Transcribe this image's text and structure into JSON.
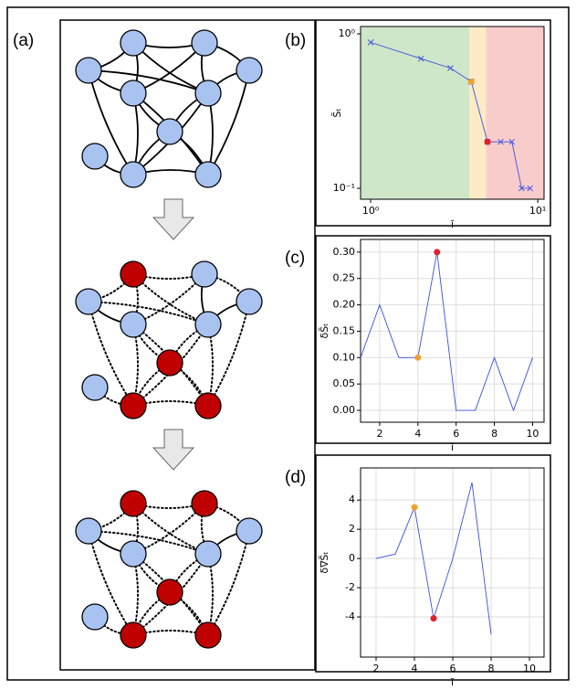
{
  "panel_labels": [
    "(a)",
    "(b)",
    "(c)",
    "(d)"
  ],
  "chart_data": [
    {
      "type": "line",
      "xlabel": "ĩ",
      "ylabel": "S̃ₜ",
      "xlog": true,
      "ylog": true,
      "grid": false,
      "color": "#3a50e0",
      "marker": "x",
      "x": [
        1,
        2,
        3,
        4,
        5,
        6,
        7,
        8,
        9
      ],
      "values": [
        0.88,
        0.69,
        0.6,
        0.49,
        0.2,
        0.2,
        0.2,
        0.1,
        0.1
      ],
      "xlim": [
        0.87,
        10.9
      ],
      "ylim": [
        0.085,
        1.115
      ],
      "xticks": [
        {
          "value": 1,
          "label": "10⁰"
        },
        {
          "value": 10,
          "label": "10¹"
        }
      ],
      "yticks": [
        {
          "value": 0.1,
          "label": "10⁻¹"
        },
        {
          "value": 1,
          "label": "10⁰"
        }
      ],
      "regions": [
        {
          "from": 0.87,
          "to": 3.9,
          "color": "#cfe6c8"
        },
        {
          "from": 3.9,
          "to": 4.9,
          "color": "#fcebc4"
        },
        {
          "from": 4.9,
          "to": 10.9,
          "color": "#f9cccc"
        }
      ],
      "highlights": [
        {
          "x": 4,
          "y": 0.49,
          "color": "#f0a030"
        },
        {
          "x": 5,
          "y": 0.2,
          "color": "#e0202a"
        }
      ]
    },
    {
      "type": "line",
      "xlabel": "ĩ",
      "ylabel": "δS̃ₜ",
      "grid": true,
      "color": "#3a50e0",
      "x": [
        1,
        2,
        3,
        4,
        5,
        6,
        7,
        8,
        9,
        10
      ],
      "values": [
        0.1,
        0.2,
        0.1,
        0.1,
        0.3,
        0,
        0,
        0.1,
        0,
        0.1
      ],
      "xlim": [
        1,
        10.6
      ],
      "ylim": [
        -0.0225,
        0.324
      ],
      "xticks": [
        2,
        4,
        6,
        8,
        10
      ],
      "yticks": [
        {
          "value": 0,
          "label": "0.00"
        },
        {
          "value": 0.05,
          "label": "0.05"
        },
        {
          "value": 0.1,
          "label": "0.10"
        },
        {
          "value": 0.15,
          "label": "0.15"
        },
        {
          "value": 0.2,
          "label": "0.20"
        },
        {
          "value": 0.25,
          "label": "0.25"
        },
        {
          "value": 0.3,
          "label": "0.30"
        }
      ],
      "highlights": [
        {
          "x": 4,
          "y": 0.1,
          "color": "#f0a030"
        },
        {
          "x": 5,
          "y": 0.3,
          "color": "#e0202a"
        }
      ]
    },
    {
      "type": "line",
      "xlabel": "ĩ",
      "ylabel": "δ∇S̃ₜ",
      "grid": true,
      "color": "#3a50e0",
      "x": [
        2,
        3,
        4,
        5,
        6,
        7,
        8
      ],
      "values": [
        0,
        0.3,
        3.5,
        -4.1,
        0,
        5.2,
        -5.2
      ],
      "xlim": [
        1.19,
        10.76
      ],
      "ylim": [
        -6.75,
        6.2
      ],
      "xticks": [
        2,
        4,
        6,
        8,
        10
      ],
      "yticks": [
        -4,
        -2,
        0,
        2,
        4
      ],
      "highlights": [
        {
          "x": 4,
          "y": 3.5,
          "color": "#f0a030"
        },
        {
          "x": 5,
          "y": -4.1,
          "color": "#e0202a"
        }
      ]
    }
  ]
}
